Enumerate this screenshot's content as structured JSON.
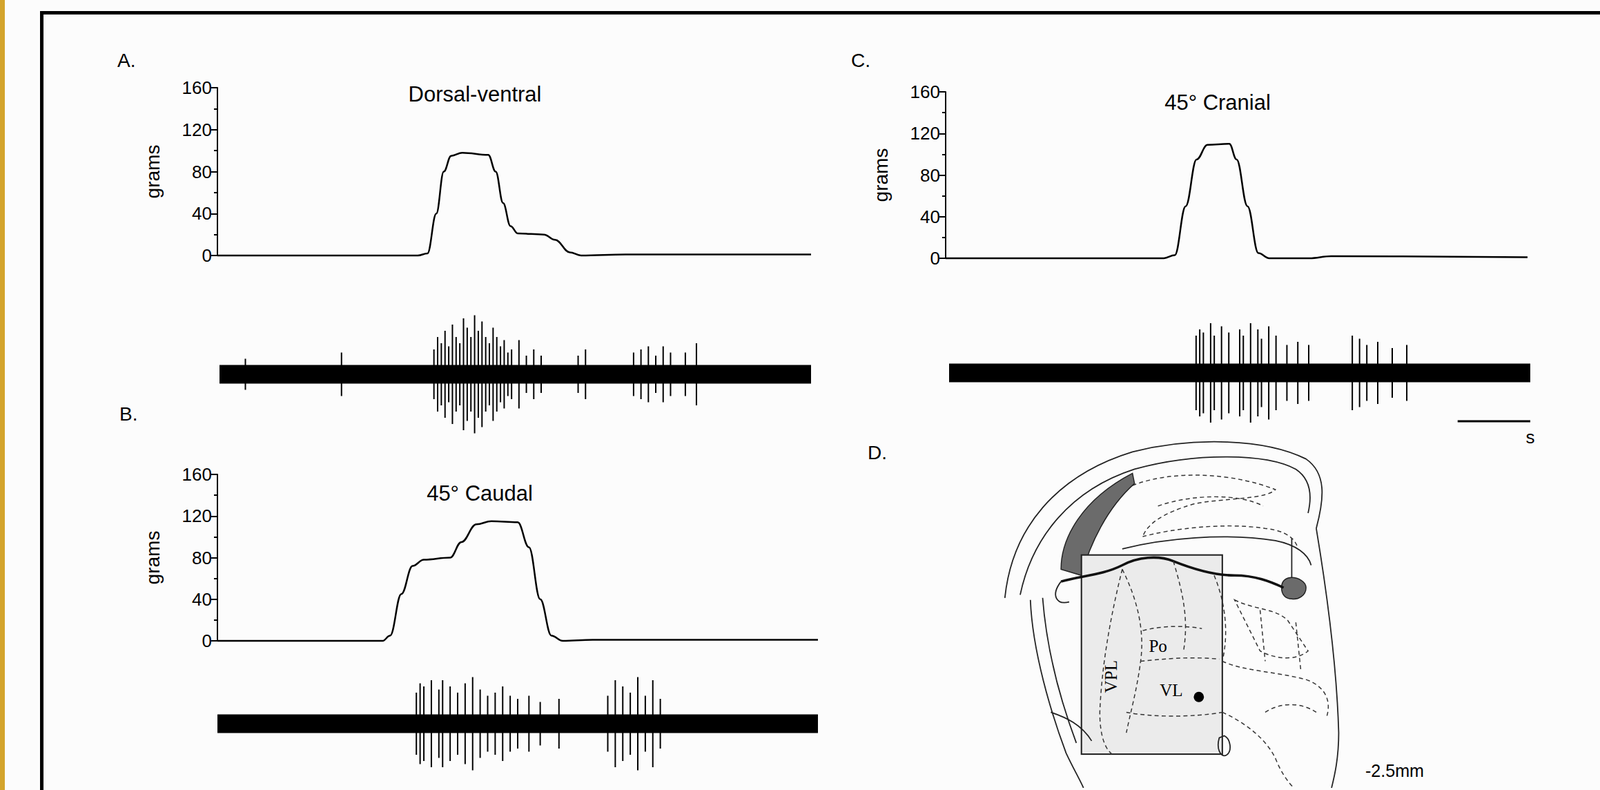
{
  "chart_data": [
    {
      "panel": "A.",
      "type": "line",
      "title": "Dorsal-ventral",
      "y_label": "grams",
      "color": "#000000",
      "x": [
        0,
        2.7,
        2.83,
        2.95,
        3.05,
        3.15,
        3.3,
        3.65,
        3.75,
        3.85,
        3.95,
        4.05,
        4.4,
        4.55,
        4.75,
        4.9,
        5.5,
        6.5,
        8
      ],
      "values": [
        0,
        0,
        2,
        40,
        80,
        95,
        98,
        96,
        80,
        50,
        28,
        21,
        20,
        15,
        3,
        0,
        1,
        1,
        1
      ],
      "xlim": [
        0,
        8
      ],
      "ylim": [
        0,
        160
      ],
      "yticks": [
        0,
        40,
        80,
        120,
        160
      ],
      "tick_labels": "y",
      "recording": {
        "type": "spikes",
        "color": "#000000",
        "noise": 1.5,
        "xlim": [
          0,
          8
        ],
        "ylim": [
          -10,
          10
        ],
        "tick_labels": false,
        "x": [
          0.35,
          1.65,
          2.9,
          2.95,
          3.0,
          3.05,
          3.1,
          3.15,
          3.2,
          3.25,
          3.3,
          3.35,
          3.4,
          3.45,
          3.5,
          3.55,
          3.6,
          3.65,
          3.7,
          3.75,
          3.8,
          3.85,
          3.9,
          3.95,
          4.05,
          4.15,
          4.25,
          4.35,
          4.85,
          4.95,
          5.6,
          5.7,
          5.8,
          5.9,
          6.0,
          6.1,
          6.3,
          6.45
        ],
        "values": [
          2.5,
          3.5,
          4,
          6,
          5,
          7,
          4.5,
          8,
          6,
          5,
          9,
          7.5,
          6,
          9.5,
          7,
          8.5,
          6,
          5,
          7.5,
          6,
          4.5,
          5.5,
          3.5,
          4,
          5.5,
          3,
          4,
          3,
          3,
          4,
          3.5,
          4,
          4.5,
          3,
          4.5,
          3.5,
          3.5,
          5
        ]
      }
    },
    {
      "panel": "B.",
      "type": "line",
      "title": "45° Caudal",
      "y_label": "grams",
      "color": "#000000",
      "x": [
        0,
        2.2,
        2.3,
        2.45,
        2.6,
        2.75,
        3.1,
        3.25,
        3.45,
        3.65,
        4.0,
        4.15,
        4.3,
        4.45,
        4.6,
        5.0,
        8
      ],
      "values": [
        0,
        0,
        5,
        45,
        72,
        78,
        80,
        95,
        112,
        115,
        114,
        90,
        40,
        5,
        0,
        1,
        1
      ],
      "xlim": [
        0,
        8
      ],
      "ylim": [
        0,
        160
      ],
      "yticks": [
        0,
        40,
        80,
        120,
        160
      ],
      "tick_labels": "y",
      "recording": {
        "type": "spikes",
        "color": "#000000",
        "noise": 1.5,
        "xlim": [
          0,
          8
        ],
        "ylim": [
          -10,
          10
        ],
        "tick_labels": false,
        "x": [
          2.65,
          2.7,
          2.75,
          2.85,
          2.95,
          3.0,
          3.1,
          3.2,
          3.3,
          3.4,
          3.5,
          3.6,
          3.7,
          3.8,
          3.9,
          4.0,
          4.15,
          4.3,
          4.55,
          5.2,
          5.3,
          5.4,
          5.5,
          5.6,
          5.7,
          5.8,
          5.9
        ],
        "values": [
          5,
          6.5,
          6,
          7,
          5.5,
          7,
          6,
          5,
          6.5,
          7.5,
          5.5,
          4.5,
          5,
          6,
          4.5,
          4,
          4.5,
          3.5,
          4,
          4.5,
          7,
          6,
          5,
          7.5,
          4.5,
          7,
          4
        ]
      }
    },
    {
      "panel": "C.",
      "type": "line",
      "title": "45° Cranial",
      "y_label": "grams",
      "color": "#000000",
      "x": [
        0,
        3.0,
        3.15,
        3.3,
        3.45,
        3.6,
        3.9,
        4.0,
        4.15,
        4.3,
        4.45,
        5.0,
        5.3,
        8
      ],
      "values": [
        0,
        0,
        3,
        50,
        95,
        109,
        110,
        95,
        50,
        5,
        0,
        0,
        2,
        1
      ],
      "xlim": [
        0,
        8
      ],
      "ylim": [
        0,
        160
      ],
      "yticks": [
        0,
        40,
        80,
        120,
        160
      ],
      "tick_labels": "y",
      "recording": {
        "type": "spikes",
        "color": "#000000",
        "noise": 1.5,
        "xlim": [
          0,
          8
        ],
        "ylim": [
          -10,
          10
        ],
        "tick_labels": false,
        "x": [
          3.4,
          3.45,
          3.5,
          3.6,
          3.65,
          3.75,
          3.85,
          4.0,
          4.05,
          4.15,
          4.25,
          4.3,
          4.4,
          4.5,
          4.65,
          4.8,
          4.95,
          5.55,
          5.65,
          5.75,
          5.9,
          6.1,
          6.3
        ],
        "values": [
          6,
          7,
          6.5,
          8,
          6,
          7.5,
          6.5,
          7,
          6,
          8,
          7,
          5.5,
          7.5,
          6,
          4.5,
          5,
          4.5,
          6,
          5.5,
          4.5,
          5,
          4,
          4.5
        ],
        "scale_bar": {
          "value": 1,
          "label": "s"
        }
      }
    }
  ],
  "diagram": {
    "panel": "D.",
    "labels": {
      "vpl": "VPL",
      "po": "Po",
      "vl": "VL"
    },
    "section": "-2.5mm"
  }
}
